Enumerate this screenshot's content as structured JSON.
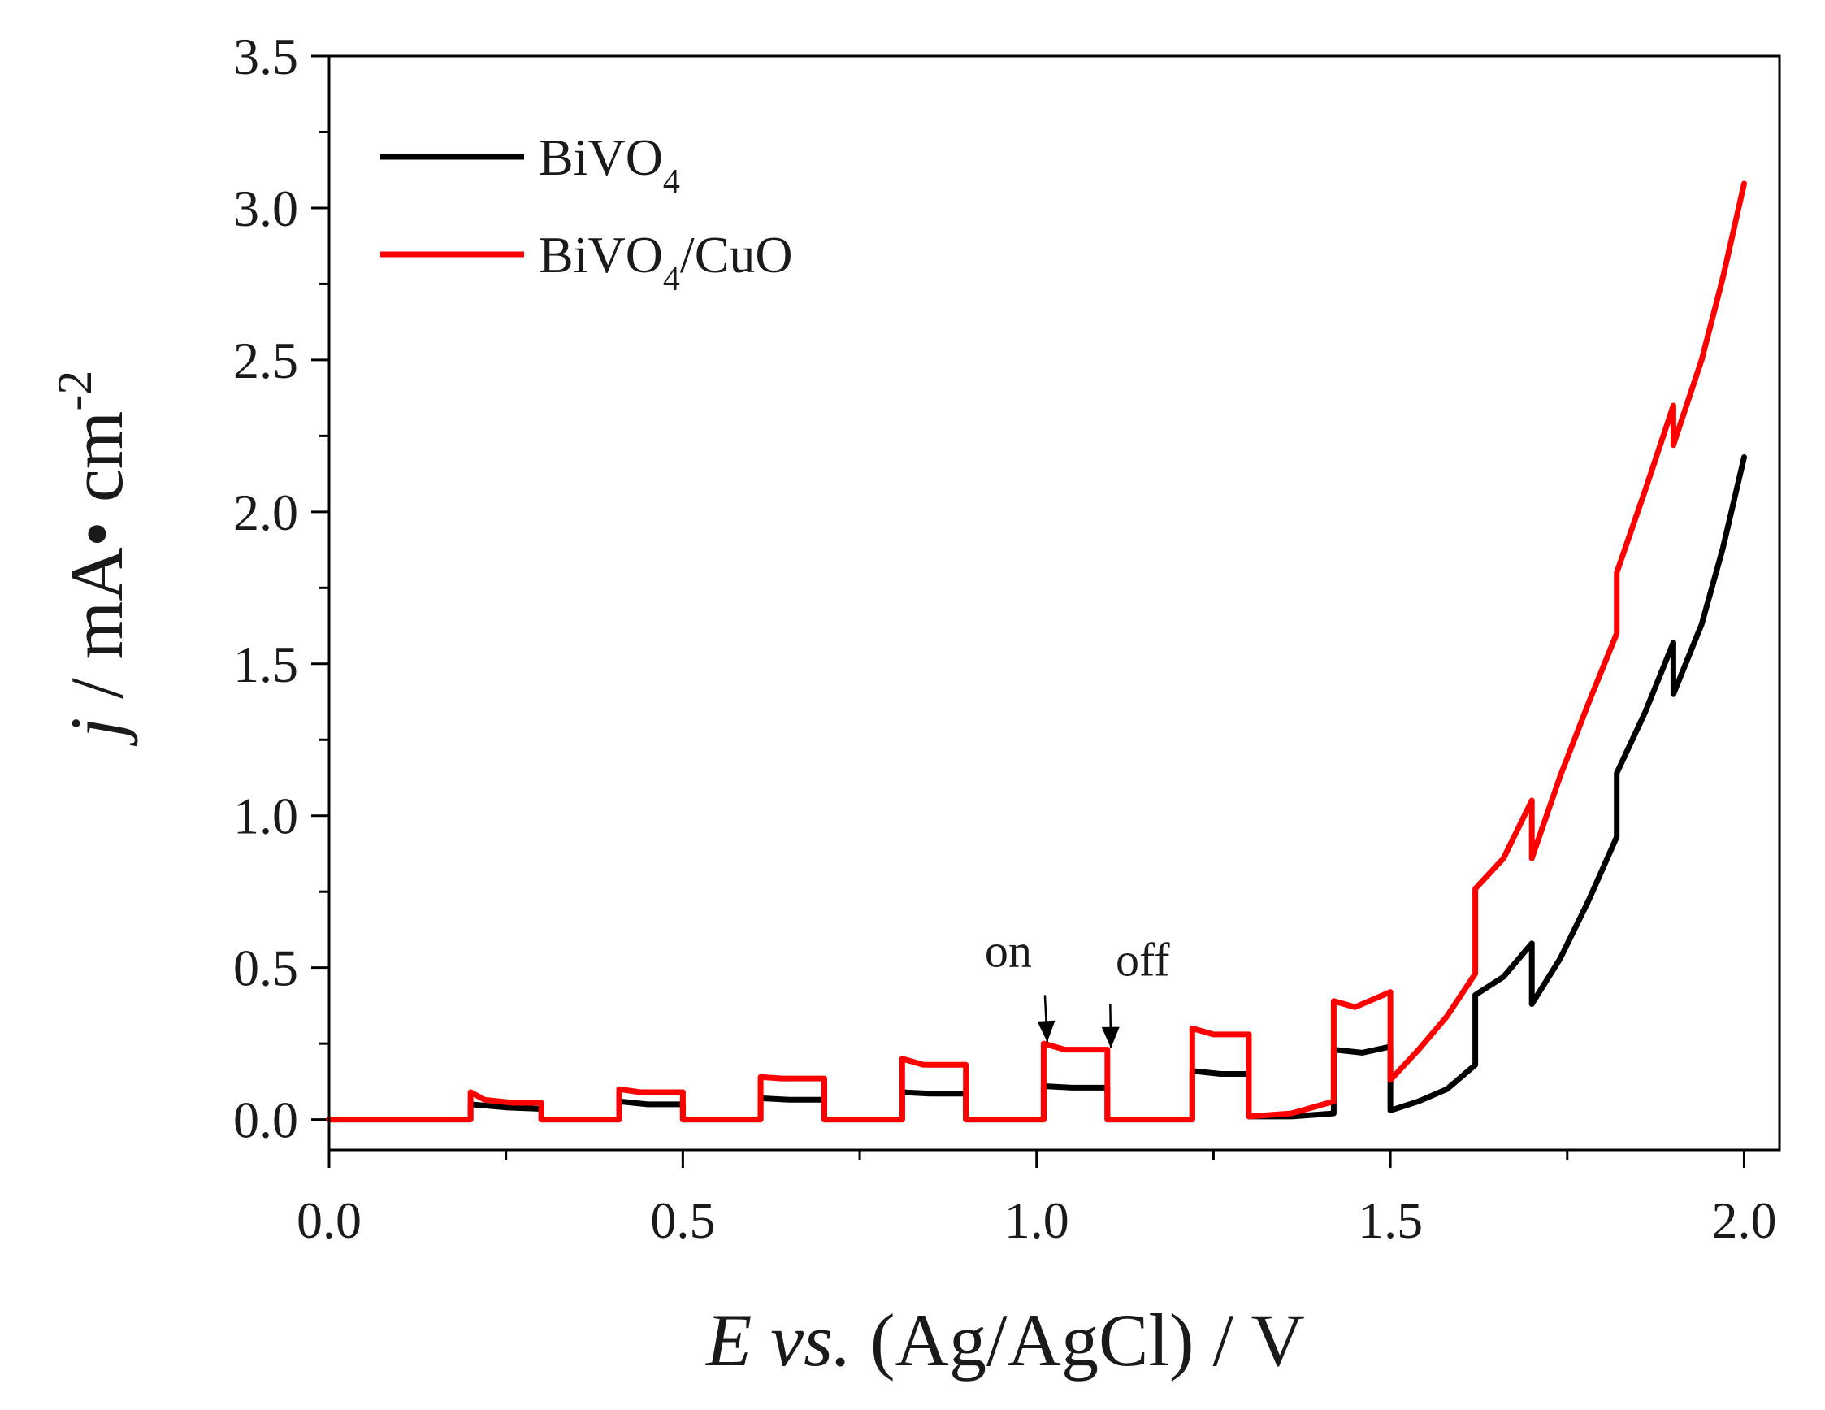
{
  "chart_data": {
    "type": "line",
    "title": "",
    "xlabel": {
      "italic": "E vs.",
      "rest": " (Ag/AgCl) / V"
    },
    "ylabel": {
      "italic": "j",
      "rest": " / mA• cm",
      "sup": "-2"
    },
    "xlim": [
      -0.0,
      2.05
    ],
    "ylim": [
      -0.1,
      3.5
    ],
    "xticks": [
      0.0,
      0.5,
      1.0,
      1.5,
      2.0
    ],
    "xtick_labels": [
      "0.0",
      "0.5",
      "1.0",
      "1.5",
      "2.0"
    ],
    "yticks": [
      0.0,
      0.5,
      1.0,
      1.5,
      2.0,
      2.5,
      3.0,
      3.5
    ],
    "ytick_labels": [
      "0.0",
      "0.5",
      "1.0",
      "1.5",
      "2.0",
      "2.5",
      "3.0",
      "3.5"
    ],
    "legend_position": "top-left",
    "series": [
      {
        "name": "BiVO4",
        "label_main": "BiVO",
        "label_sub": "4",
        "label_tail": "",
        "color": "#000000",
        "points": [
          [
            0.0,
            0.0
          ],
          [
            0.2,
            0.0
          ],
          [
            0.2,
            0.05
          ],
          [
            0.25,
            0.04
          ],
          [
            0.3,
            0.035
          ],
          [
            0.3,
            0.0
          ],
          [
            0.41,
            0.0
          ],
          [
            0.41,
            0.06
          ],
          [
            0.45,
            0.05
          ],
          [
            0.5,
            0.05
          ],
          [
            0.5,
            0.0
          ],
          [
            0.61,
            0.0
          ],
          [
            0.61,
            0.07
          ],
          [
            0.65,
            0.065
          ],
          [
            0.7,
            0.065
          ],
          [
            0.7,
            0.0
          ],
          [
            0.81,
            0.0
          ],
          [
            0.81,
            0.09
          ],
          [
            0.85,
            0.085
          ],
          [
            0.9,
            0.085
          ],
          [
            0.9,
            0.0
          ],
          [
            1.01,
            0.0
          ],
          [
            1.01,
            0.11
          ],
          [
            1.05,
            0.105
          ],
          [
            1.1,
            0.105
          ],
          [
            1.1,
            0.0
          ],
          [
            1.22,
            0.0
          ],
          [
            1.22,
            0.16
          ],
          [
            1.26,
            0.15
          ],
          [
            1.3,
            0.15
          ],
          [
            1.3,
            0.01
          ],
          [
            1.36,
            0.01
          ],
          [
            1.42,
            0.02
          ],
          [
            1.42,
            0.23
          ],
          [
            1.46,
            0.22
          ],
          [
            1.5,
            0.24
          ],
          [
            1.5,
            0.03
          ],
          [
            1.54,
            0.06
          ],
          [
            1.58,
            0.1
          ],
          [
            1.62,
            0.18
          ],
          [
            1.62,
            0.41
          ],
          [
            1.66,
            0.47
          ],
          [
            1.7,
            0.58
          ],
          [
            1.7,
            0.38
          ],
          [
            1.74,
            0.53
          ],
          [
            1.78,
            0.72
          ],
          [
            1.82,
            0.93
          ],
          [
            1.82,
            1.14
          ],
          [
            1.86,
            1.34
          ],
          [
            1.9,
            1.57
          ],
          [
            1.9,
            1.4
          ],
          [
            1.94,
            1.63
          ],
          [
            1.97,
            1.88
          ],
          [
            2.0,
            2.18
          ]
        ]
      },
      {
        "name": "BiVO4/CuO",
        "label_main": "BiVO",
        "label_sub": "4",
        "label_tail": "/CuO",
        "color": "#ff0000",
        "points": [
          [
            0.0,
            0.0
          ],
          [
            0.2,
            0.0
          ],
          [
            0.2,
            0.09
          ],
          [
            0.22,
            0.065
          ],
          [
            0.26,
            0.055
          ],
          [
            0.3,
            0.055
          ],
          [
            0.3,
            0.0
          ],
          [
            0.41,
            0.0
          ],
          [
            0.41,
            0.1
          ],
          [
            0.44,
            0.09
          ],
          [
            0.5,
            0.09
          ],
          [
            0.5,
            0.0
          ],
          [
            0.61,
            0.0
          ],
          [
            0.61,
            0.14
          ],
          [
            0.64,
            0.135
          ],
          [
            0.7,
            0.135
          ],
          [
            0.7,
            0.0
          ],
          [
            0.81,
            0.0
          ],
          [
            0.81,
            0.2
          ],
          [
            0.84,
            0.18
          ],
          [
            0.9,
            0.18
          ],
          [
            0.9,
            0.0
          ],
          [
            1.01,
            0.0
          ],
          [
            1.01,
            0.25
          ],
          [
            1.04,
            0.23
          ],
          [
            1.1,
            0.23
          ],
          [
            1.1,
            0.0
          ],
          [
            1.22,
            0.0
          ],
          [
            1.22,
            0.3
          ],
          [
            1.25,
            0.28
          ],
          [
            1.3,
            0.28
          ],
          [
            1.3,
            0.01
          ],
          [
            1.36,
            0.02
          ],
          [
            1.42,
            0.06
          ],
          [
            1.42,
            0.39
          ],
          [
            1.45,
            0.37
          ],
          [
            1.5,
            0.42
          ],
          [
            1.5,
            0.13
          ],
          [
            1.54,
            0.23
          ],
          [
            1.58,
            0.34
          ],
          [
            1.62,
            0.48
          ],
          [
            1.62,
            0.76
          ],
          [
            1.66,
            0.86
          ],
          [
            1.7,
            1.05
          ],
          [
            1.7,
            0.86
          ],
          [
            1.74,
            1.13
          ],
          [
            1.78,
            1.37
          ],
          [
            1.82,
            1.6
          ],
          [
            1.82,
            1.8
          ],
          [
            1.86,
            2.07
          ],
          [
            1.9,
            2.35
          ],
          [
            1.9,
            2.22
          ],
          [
            1.94,
            2.5
          ],
          [
            1.97,
            2.77
          ],
          [
            2.0,
            3.08
          ]
        ]
      }
    ],
    "annotations": [
      {
        "text": "on",
        "x": 0.96,
        "y": 0.53,
        "arrow_to": [
          1.015,
          0.255
        ]
      },
      {
        "text": "off",
        "x": 1.15,
        "y": 0.5,
        "arrow_to": [
          1.105,
          0.235
        ]
      }
    ]
  }
}
